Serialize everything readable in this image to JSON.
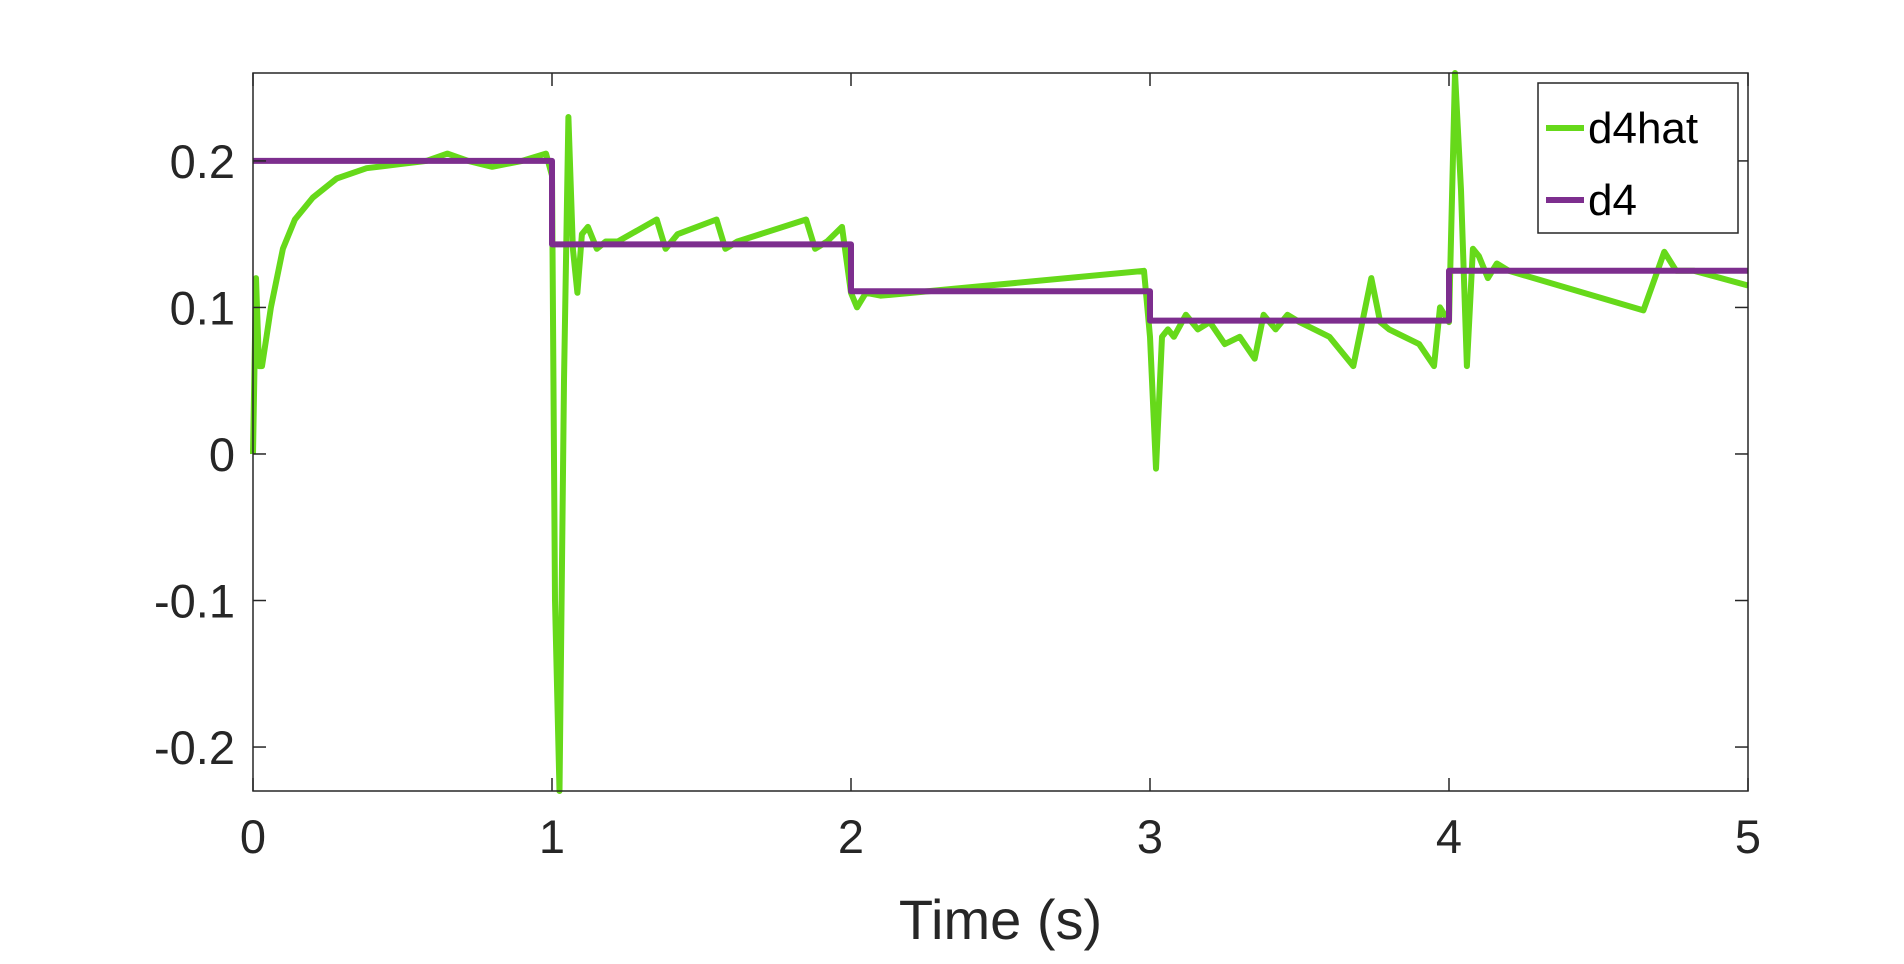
{
  "chart_data": {
    "type": "line",
    "xlabel": "Time (s)",
    "ylabel": "",
    "xlim": [
      0,
      5
    ],
    "ylim": [
      -0.23,
      0.26
    ],
    "xticks": [
      0,
      1,
      2,
      3,
      4,
      5
    ],
    "xtick_labels": [
      "0",
      "1",
      "2",
      "3",
      "4",
      "5"
    ],
    "yticks": [
      -0.2,
      -0.1,
      0,
      0.1,
      0.2
    ],
    "ytick_labels": [
      "-0.2",
      "-0.1",
      "0",
      "0.1",
      "0.2"
    ],
    "grid": false,
    "legend_position": "top-right",
    "series": [
      {
        "name": "d4hat",
        "color": "#66d91a",
        "x": [
          0,
          0.01,
          0.02,
          0.03,
          0.045,
          0.06,
          0.08,
          0.1,
          0.14,
          0.2,
          0.28,
          0.38,
          0.5,
          0.58,
          0.65,
          0.72,
          0.8,
          0.9,
          0.98,
          1.0,
          1.01,
          1.025,
          1.04,
          1.055,
          1.07,
          1.085,
          1.1,
          1.12,
          1.15,
          1.18,
          1.22,
          1.35,
          1.38,
          1.42,
          1.55,
          1.58,
          1.62,
          1.85,
          1.88,
          1.92,
          1.97,
          2.0,
          2.02,
          2.05,
          2.1,
          2.98,
          3.0,
          3.02,
          3.04,
          3.06,
          3.08,
          3.12,
          3.16,
          3.2,
          3.25,
          3.3,
          3.35,
          3.38,
          3.42,
          3.46,
          3.5,
          3.55,
          3.6,
          3.68,
          3.71,
          3.74,
          3.77,
          3.8,
          3.9,
          3.95,
          3.97,
          4.0,
          4.02,
          4.04,
          4.06,
          4.08,
          4.1,
          4.13,
          4.16,
          4.2,
          4.65,
          4.68,
          4.72,
          4.76,
          4.82,
          5.0
        ],
        "y": [
          0.0,
          0.12,
          0.06,
          0.06,
          0.08,
          0.1,
          0.12,
          0.14,
          0.16,
          0.175,
          0.188,
          0.195,
          0.198,
          0.2,
          0.205,
          0.2,
          0.196,
          0.2,
          0.205,
          0.19,
          -0.1,
          -0.23,
          0.05,
          0.23,
          0.14,
          0.11,
          0.15,
          0.155,
          0.14,
          0.145,
          0.145,
          0.16,
          0.14,
          0.15,
          0.16,
          0.14,
          0.145,
          0.16,
          0.14,
          0.145,
          0.155,
          0.11,
          0.1,
          0.11,
          0.108,
          0.125,
          0.08,
          -0.01,
          0.08,
          0.085,
          0.08,
          0.095,
          0.085,
          0.09,
          0.075,
          0.08,
          0.065,
          0.095,
          0.085,
          0.095,
          0.09,
          0.085,
          0.08,
          0.06,
          0.09,
          0.12,
          0.09,
          0.085,
          0.075,
          0.06,
          0.1,
          0.09,
          0.26,
          0.18,
          0.06,
          0.14,
          0.135,
          0.12,
          0.13,
          0.125,
          0.098,
          0.115,
          0.138,
          0.125,
          0.125,
          0.115
        ]
      },
      {
        "name": "d4",
        "color": "#7d2e8e",
        "x": [
          0,
          1,
          1,
          2,
          2,
          3,
          3,
          4,
          4,
          5
        ],
        "y": [
          0.2,
          0.2,
          0.143,
          0.143,
          0.111,
          0.111,
          0.091,
          0.091,
          0.125,
          0.125
        ]
      }
    ]
  }
}
